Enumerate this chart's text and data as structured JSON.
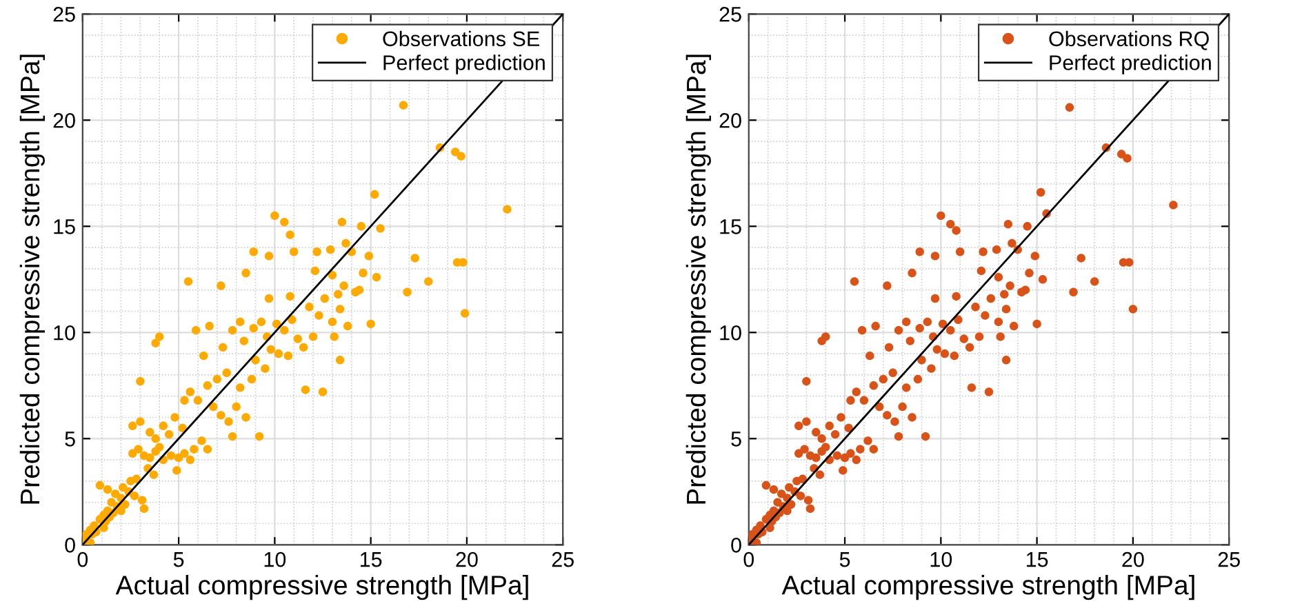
{
  "chart_data": [
    {
      "type": "scatter",
      "xlabel": "Actual compressive strength [MPa]",
      "ylabel": "Predicted compressive strength [MPa]",
      "xlim": [
        0,
        25
      ],
      "ylim": [
        0,
        25
      ],
      "xticks": [
        0,
        5,
        10,
        15,
        20,
        25
      ],
      "yticks": [
        0,
        5,
        10,
        15,
        20,
        25
      ],
      "grid": true,
      "legend": "top right",
      "marker": "circle",
      "series": [
        {
          "name": "Observations SE",
          "color": "#ffaa00",
          "x": [
            16.7,
            18.6,
            19.4,
            19.7,
            22.1,
            19.5,
            19.8,
            19.9,
            17.3,
            16.9,
            18.0,
            15.2,
            15.5,
            13.5,
            14.0,
            13.0,
            13.3,
            15.3,
            14.5,
            10.0,
            10.5,
            10.8,
            9.7,
            8.5,
            5.5,
            3.0,
            4.0,
            3.8,
            9.2,
            11.6,
            12.5,
            13.4,
            15.0,
            0.1,
            0.2,
            0.4,
            0.5,
            0.6,
            0.7,
            0.9,
            1.1,
            1.2,
            1.3,
            1.4,
            1.5,
            1.6,
            1.7,
            1.8,
            2.0,
            2.1,
            2.2,
            2.4,
            2.5,
            2.7,
            0.9,
            1.3,
            3.1,
            3.2,
            2.8,
            2.6,
            2.9,
            3.2,
            3.5,
            3.8,
            4.2,
            4.6,
            5.0,
            5.3,
            5.6,
            3.4,
            3.7,
            4.9,
            6.2,
            6.5,
            5.8,
            2.6,
            3.0,
            3.8,
            4.2,
            4.8,
            5.3,
            5.6,
            6.0,
            6.5,
            6.8,
            7.2,
            7.6,
            8.0,
            8.5,
            7.0,
            7.5,
            8.2,
            8.8,
            9.0,
            9.5,
            9.8,
            6.3,
            7.3,
            8.4,
            7.8,
            8.9,
            9.3,
            9.6,
            10.1,
            10.5,
            10.9,
            11.2,
            10.2,
            10.7,
            11.5,
            12.0,
            12.3,
            11.8,
            12.6,
            13.0,
            13.4,
            13.8,
            13.6,
            14.2,
            14.6,
            12.1,
            11.0,
            12.2,
            12.9,
            13.7,
            14.9,
            7.2,
            8.9,
            9.7,
            6.6,
            5.9,
            8.2,
            10.8,
            13.1,
            14.4,
            4.5,
            3.5,
            5.2,
            4.0,
            7.8,
            2.0,
            1.1,
            0.4
          ],
          "values": [
            20.7,
            18.7,
            18.5,
            18.3,
            15.8,
            13.3,
            13.3,
            10.9,
            13.5,
            11.9,
            12.4,
            16.5,
            14.9,
            15.2,
            13.8,
            12.7,
            11.8,
            12.6,
            15.0,
            15.5,
            15.2,
            14.6,
            13.6,
            12.8,
            12.4,
            7.7,
            9.8,
            9.5,
            5.1,
            7.3,
            7.2,
            8.7,
            10.4,
            0.2,
            0.5,
            0.7,
            0.5,
            0.9,
            0.6,
            1.2,
            1.4,
            1.1,
            1.6,
            1.3,
            2.0,
            1.5,
            2.4,
            1.8,
            2.2,
            2.7,
            1.9,
            2.5,
            3.0,
            2.3,
            2.8,
            2.6,
            2.1,
            1.7,
            3.1,
            4.3,
            4.5,
            4.2,
            4.1,
            4.4,
            4.0,
            4.2,
            4.1,
            4.3,
            4.0,
            3.6,
            3.3,
            3.5,
            4.9,
            4.5,
            4.5,
            5.6,
            5.8,
            5.0,
            5.6,
            6.0,
            6.8,
            7.2,
            6.8,
            7.5,
            6.5,
            6.1,
            5.8,
            6.5,
            6.0,
            7.8,
            8.1,
            7.4,
            7.8,
            8.7,
            8.3,
            9.2,
            8.9,
            9.3,
            9.6,
            10.1,
            10.2,
            10.5,
            9.8,
            10.4,
            10.1,
            10.6,
            9.7,
            9.0,
            8.9,
            9.3,
            9.8,
            10.8,
            11.2,
            11.6,
            10.5,
            11.1,
            10.3,
            12.2,
            11.9,
            12.8,
            12.9,
            13.8,
            13.8,
            13.9,
            14.2,
            13.6,
            12.2,
            13.8,
            11.6,
            10.3,
            10.1,
            10.5,
            11.7,
            9.8,
            12.0,
            5.2,
            5.3,
            5.5,
            4.6,
            5.1,
            1.6,
            0.8,
            0.1
          ]
        },
        {
          "name": "Perfect prediction",
          "color": "#000000",
          "type": "line",
          "marker": "none",
          "x": [
            0,
            25
          ],
          "values": [
            0,
            25
          ]
        }
      ]
    },
    {
      "type": "scatter",
      "xlabel": "Actual compressive strength [MPa]",
      "ylabel": "Predicted compressive strength [MPa]",
      "xlim": [
        0,
        25
      ],
      "ylim": [
        0,
        25
      ],
      "xticks": [
        0,
        5,
        10,
        15,
        20,
        25
      ],
      "yticks": [
        0,
        5,
        10,
        15,
        20,
        25
      ],
      "grid": true,
      "legend": "top right",
      "marker": "circle",
      "series": [
        {
          "name": "Observations RQ",
          "color": "#d95319",
          "x": [
            16.7,
            18.6,
            19.4,
            19.7,
            22.1,
            19.5,
            19.8,
            20.0,
            17.3,
            16.9,
            18.0,
            15.2,
            15.5,
            13.5,
            14.0,
            13.0,
            13.3,
            15.3,
            14.5,
            10.0,
            10.5,
            10.8,
            9.7,
            8.5,
            5.5,
            3.0,
            4.0,
            3.8,
            9.2,
            11.6,
            12.5,
            13.4,
            15.0,
            0.1,
            0.2,
            0.4,
            0.5,
            0.6,
            0.7,
            0.9,
            1.1,
            1.2,
            1.3,
            1.4,
            1.5,
            1.6,
            1.7,
            1.8,
            2.0,
            2.1,
            2.2,
            2.4,
            2.5,
            2.7,
            0.9,
            1.3,
            3.1,
            3.2,
            2.8,
            2.6,
            2.9,
            3.2,
            3.5,
            3.8,
            4.2,
            4.6,
            5.0,
            5.3,
            5.6,
            3.4,
            3.7,
            4.9,
            6.2,
            6.5,
            5.8,
            2.6,
            3.0,
            3.8,
            4.2,
            4.8,
            5.3,
            5.6,
            6.0,
            6.5,
            6.8,
            7.2,
            7.6,
            8.0,
            8.5,
            7.0,
            7.5,
            8.2,
            8.8,
            9.0,
            9.5,
            9.8,
            6.3,
            7.3,
            8.4,
            7.8,
            8.9,
            9.3,
            9.6,
            10.1,
            10.5,
            10.9,
            11.2,
            10.2,
            10.7,
            11.5,
            12.0,
            12.3,
            11.8,
            12.6,
            13.0,
            13.4,
            13.8,
            13.6,
            14.2,
            14.6,
            12.1,
            11.0,
            12.2,
            12.9,
            13.7,
            14.9,
            7.2,
            8.9,
            9.7,
            6.6,
            5.9,
            8.2,
            10.8,
            13.1,
            14.4,
            4.5,
            3.5,
            5.2,
            4.0,
            7.8,
            2.0,
            1.1,
            0.4
          ],
          "values": [
            20.6,
            18.7,
            18.4,
            18.2,
            16.0,
            13.3,
            13.3,
            11.1,
            13.5,
            11.9,
            12.4,
            16.6,
            15.6,
            15.1,
            13.9,
            12.6,
            11.8,
            12.5,
            15.0,
            15.5,
            15.1,
            14.8,
            13.6,
            12.8,
            12.4,
            7.7,
            9.8,
            9.6,
            5.1,
            7.4,
            7.2,
            8.7,
            10.4,
            0.2,
            0.5,
            0.7,
            0.5,
            0.9,
            0.6,
            1.2,
            1.4,
            1.1,
            1.6,
            1.3,
            2.0,
            1.5,
            2.4,
            1.8,
            2.2,
            2.7,
            1.9,
            2.5,
            3.0,
            2.3,
            2.8,
            2.6,
            2.1,
            1.7,
            3.1,
            4.3,
            4.5,
            4.2,
            4.1,
            4.4,
            4.0,
            4.2,
            4.1,
            4.3,
            4.0,
            3.6,
            3.3,
            3.5,
            4.9,
            4.5,
            4.5,
            5.6,
            5.8,
            5.0,
            5.6,
            6.0,
            6.8,
            7.2,
            6.8,
            7.5,
            6.5,
            6.1,
            5.8,
            6.5,
            6.0,
            7.8,
            8.1,
            7.4,
            7.8,
            8.7,
            8.3,
            9.2,
            8.9,
            9.3,
            9.6,
            10.1,
            10.2,
            10.5,
            9.8,
            10.4,
            10.1,
            10.6,
            9.7,
            9.0,
            8.9,
            9.3,
            9.8,
            10.8,
            11.2,
            11.6,
            10.5,
            11.1,
            10.3,
            12.2,
            11.9,
            12.8,
            12.9,
            13.8,
            13.8,
            13.9,
            14.2,
            13.6,
            12.2,
            13.8,
            11.6,
            10.3,
            10.1,
            10.5,
            11.7,
            9.8,
            12.0,
            5.2,
            5.3,
            5.5,
            4.6,
            5.1,
            1.6,
            0.8,
            0.1
          ]
        },
        {
          "name": "Perfect prediction",
          "color": "#000000",
          "type": "line",
          "marker": "none",
          "x": [
            0,
            25
          ],
          "values": [
            0,
            25
          ]
        }
      ]
    }
  ]
}
